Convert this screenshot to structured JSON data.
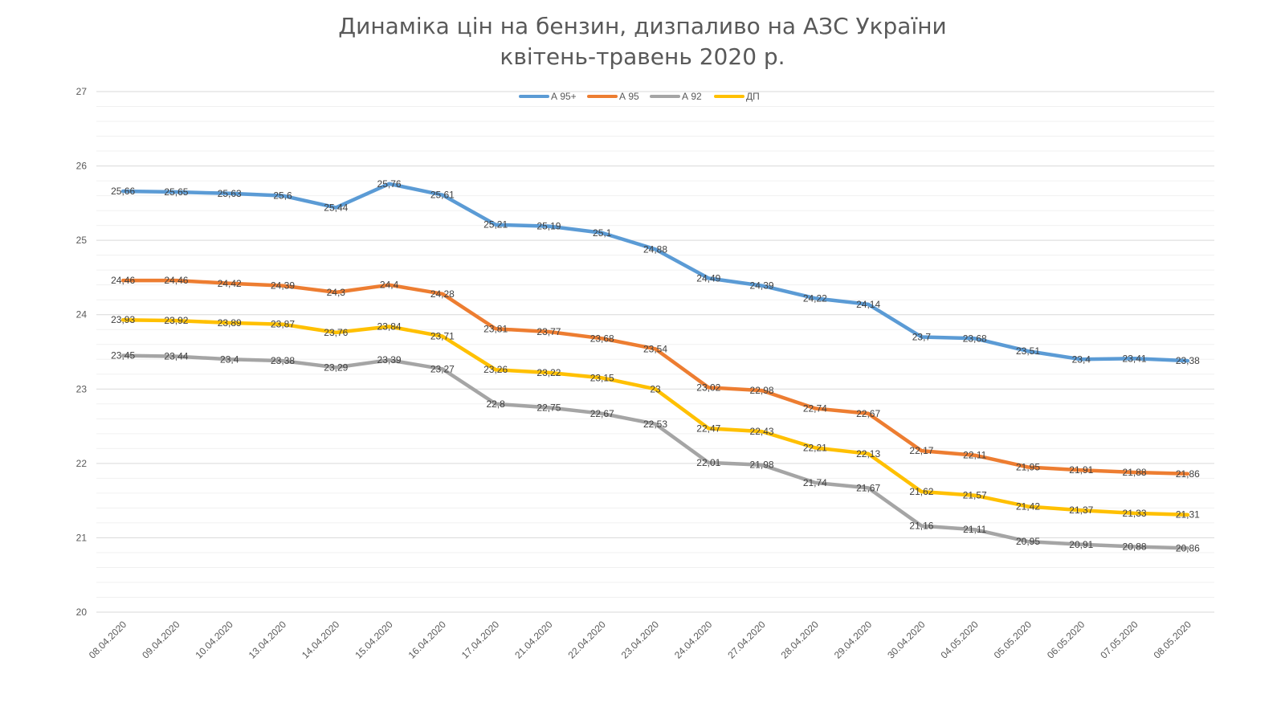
{
  "chart_data": {
    "type": "line",
    "title": [
      "Динаміка цін на бензин, дизпаливо на АЗС України",
      "квітень-травень 2020 р."
    ],
    "xlabel": "",
    "ylabel": "",
    "ylim": [
      20,
      27
    ],
    "yticks": [
      "20",
      "21",
      "22",
      "23",
      "24",
      "25",
      "26",
      "27"
    ],
    "grid": true,
    "legend_position": "top",
    "categories": [
      "08.04.2020",
      "09.04.2020",
      "10.04.2020",
      "13.04.2020",
      "14.04.2020",
      "15.04.2020",
      "16.04.2020",
      "17.04.2020",
      "21.04.2020",
      "22.04.2020",
      "23.04.2020",
      "24.04.2020",
      "27.04.2020",
      "28.04.2020",
      "29.04.2020",
      "30.04.2020",
      "04.05.2020",
      "05.05.2020",
      "06.05.2020",
      "07.05.2020",
      "08.05.2020"
    ],
    "series": [
      {
        "name": "А 95+",
        "color": "#5b9bd5",
        "values": [
          25.66,
          25.65,
          25.63,
          25.6,
          25.44,
          25.76,
          25.61,
          25.21,
          25.19,
          25.1,
          24.88,
          24.49,
          24.39,
          24.22,
          24.14,
          23.7,
          23.68,
          23.51,
          23.4,
          23.41,
          23.38
        ],
        "labels": [
          "25,66",
          "25,65",
          "25,63",
          "25,6",
          "25,44",
          "25,76",
          "25,61",
          "25,21",
          "25,19",
          "25,1",
          "24,88",
          "24,49",
          "24,39",
          "24,22",
          "24,14",
          "23,7",
          "23,68",
          "23,51",
          "23,4",
          "23,41",
          "23,38"
        ]
      },
      {
        "name": "А 95",
        "color": "#ed7d31",
        "values": [
          24.46,
          24.46,
          24.42,
          24.39,
          24.3,
          24.4,
          24.28,
          23.81,
          23.77,
          23.68,
          23.54,
          23.02,
          22.98,
          22.74,
          22.67,
          22.17,
          22.11,
          21.95,
          21.91,
          21.88,
          21.86
        ],
        "labels": [
          "24,46",
          "24,46",
          "24,42",
          "24,39",
          "24,3",
          "24,4",
          "24,28",
          "23,81",
          "23,77",
          "23,68",
          "23,54",
          "23,02",
          "22,98",
          "22,74",
          "22,67",
          "22,17",
          "22,11",
          "21,95",
          "21,91",
          "21,88",
          "21,86"
        ]
      },
      {
        "name": "А 92",
        "color": "#a5a5a5",
        "values": [
          23.45,
          23.44,
          23.4,
          23.38,
          23.29,
          23.39,
          23.27,
          22.8,
          22.75,
          22.67,
          22.53,
          22.01,
          21.98,
          21.74,
          21.67,
          21.16,
          21.11,
          20.95,
          20.91,
          20.88,
          20.86
        ],
        "labels": [
          "23,45",
          "23,44",
          "23,4",
          "23,38",
          "23,29",
          "23,39",
          "23,27",
          "22,8",
          "22,75",
          "22,67",
          "22,53",
          "22,01",
          "21,98",
          "21,74",
          "21,67",
          "21,16",
          "21,11",
          "20,95",
          "20,91",
          "20,88",
          "20,86"
        ]
      },
      {
        "name": "ДП",
        "color": "#ffc000",
        "values": [
          23.93,
          23.92,
          23.89,
          23.87,
          23.76,
          23.84,
          23.71,
          23.26,
          23.22,
          23.15,
          23.0,
          22.47,
          22.43,
          22.21,
          22.13,
          21.62,
          21.57,
          21.42,
          21.37,
          21.33,
          21.31
        ],
        "labels": [
          "23,93",
          "23,92",
          "23,89",
          "23,87",
          "23,76",
          "23,84",
          "23,71",
          "23,26",
          "23,22",
          "23,15",
          "23",
          "22,47",
          "22,43",
          "22,21",
          "22,13",
          "21,62",
          "21,57",
          "21,42",
          "21,37",
          "21,33",
          "21,31"
        ]
      }
    ]
  }
}
